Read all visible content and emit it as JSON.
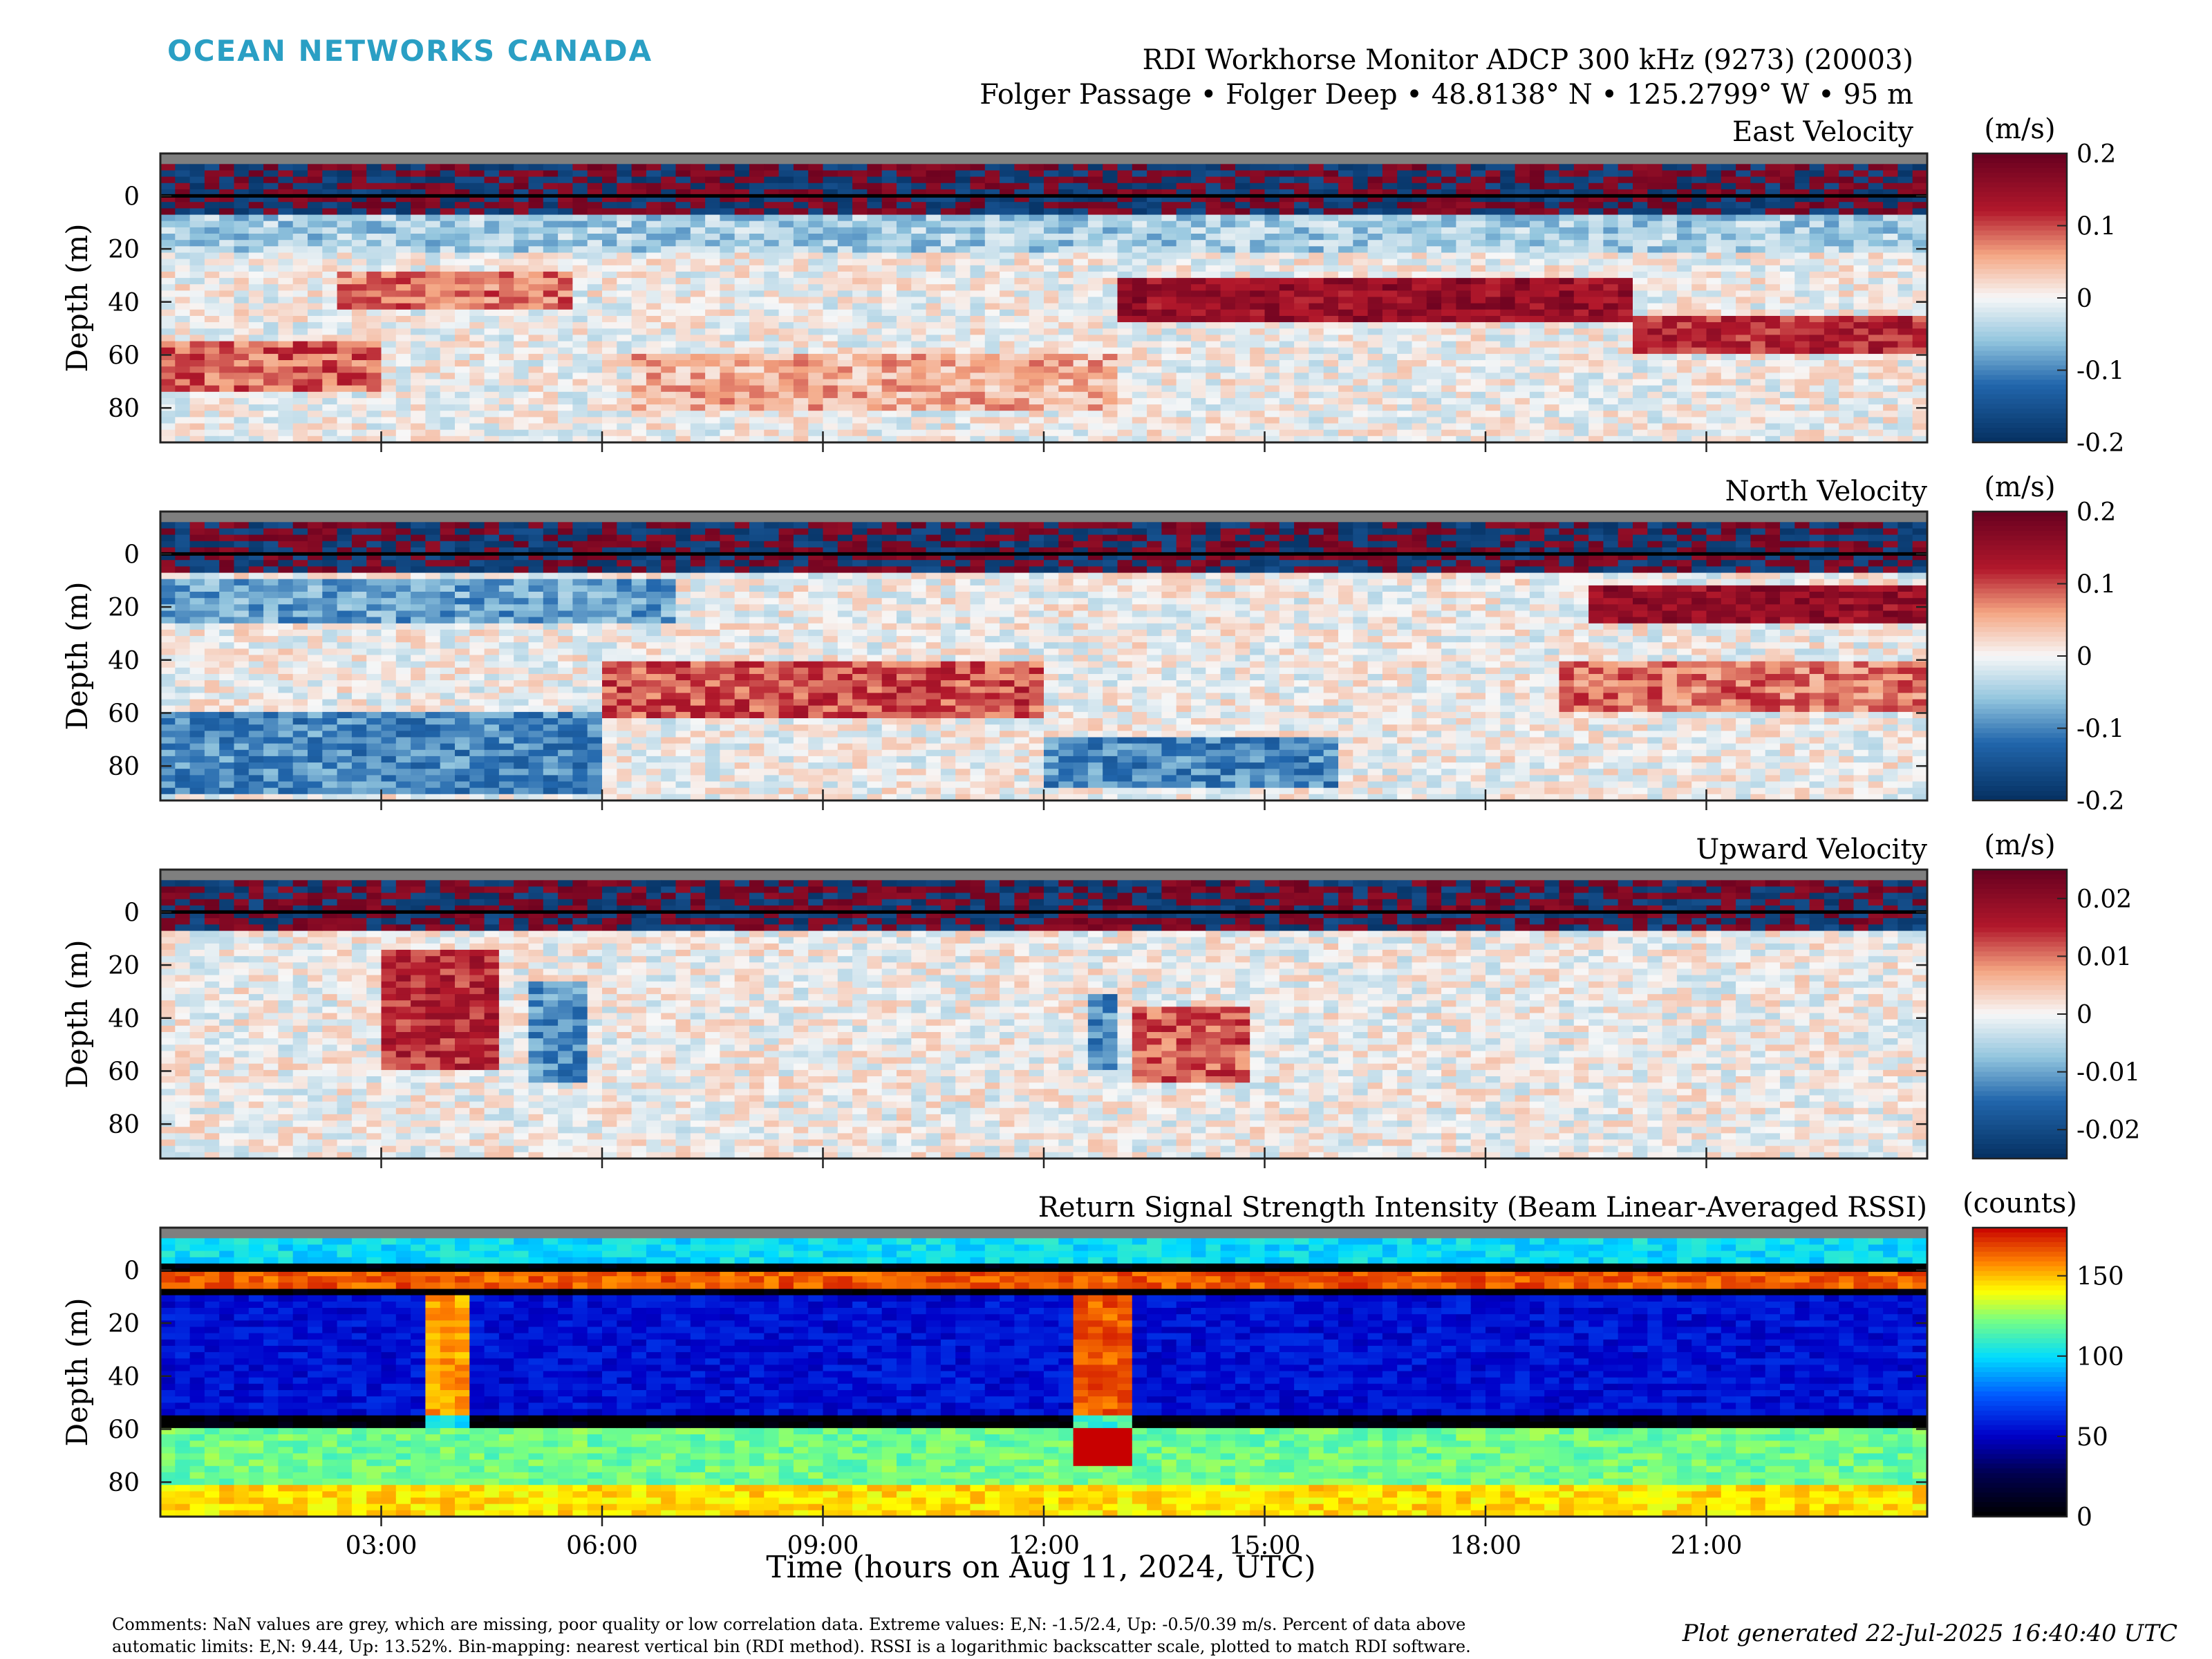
{
  "brand": {
    "logo_text": "OCEAN NETWORKS CANADA",
    "color": "#2a9fc4"
  },
  "header": {
    "title": "RDI Workhorse Monitor ADCP 300 kHz (9273) (20003)",
    "subtitle": "Folger Passage • Folger Deep • 48.8138° N • 125.2799° W • 95 m"
  },
  "xaxis": {
    "label": "Time (hours on Aug 11, 2024, UTC)",
    "range_hours": [
      0,
      24
    ],
    "ticks_hours": [
      3,
      6,
      9,
      12,
      15,
      18,
      21
    ],
    "tick_labels": [
      "03:00",
      "06:00",
      "09:00",
      "12:00",
      "15:00",
      "18:00",
      "21:00"
    ]
  },
  "chart_data": [
    {
      "type": "heatmap",
      "title": "East Velocity",
      "ylabel": "Depth (m)",
      "ylim": [
        93,
        -16
      ],
      "yticks": [
        0,
        20,
        40,
        60,
        80
      ],
      "colorbar": {
        "label": "(m/s)",
        "range": [
          -0.2,
          0.2
        ],
        "ticks": [
          0.2,
          0.1,
          0,
          -0.1,
          -0.2
        ],
        "tick_labels": [
          "0.2",
          "0.1",
          "0",
          "-0.1",
          "-0.2"
        ],
        "colormap": "diverging-red-blue"
      },
      "features": [
        {
          "t": [
            2.5,
            5.5
          ],
          "depth": [
            28,
            42
          ],
          "value": 0.08
        },
        {
          "t": [
            0,
            3
          ],
          "depth": [
            55,
            75
          ],
          "value": 0.09
        },
        {
          "t": [
            6.5,
            13
          ],
          "depth": [
            60,
            80
          ],
          "value": 0.05
        },
        {
          "t": [
            13,
            20
          ],
          "depth": [
            30,
            48
          ],
          "value": 0.15
        },
        {
          "t": [
            20,
            24
          ],
          "depth": [
            45,
            60
          ],
          "value": 0.12
        },
        {
          "t": [
            0,
            24
          ],
          "depth": [
            8,
            22
          ],
          "value": -0.05
        }
      ]
    },
    {
      "type": "heatmap",
      "title": "North Velocity",
      "ylabel": "Depth (m)",
      "ylim": [
        93,
        -16
      ],
      "yticks": [
        0,
        20,
        40,
        60,
        80
      ],
      "colorbar": {
        "label": "(m/s)",
        "range": [
          -0.2,
          0.2
        ],
        "ticks": [
          0.2,
          0.1,
          0,
          -0.1,
          -0.2
        ],
        "tick_labels": [
          "0.2",
          "0.1",
          "0",
          "-0.1",
          "-0.2"
        ],
        "colormap": "diverging-red-blue"
      },
      "features": [
        {
          "t": [
            0,
            7
          ],
          "depth": [
            10,
            25
          ],
          "value": -0.08
        },
        {
          "t": [
            0,
            6
          ],
          "depth": [
            60,
            90
          ],
          "value": -0.1
        },
        {
          "t": [
            6,
            12
          ],
          "depth": [
            40,
            62
          ],
          "value": 0.1
        },
        {
          "t": [
            12,
            16
          ],
          "depth": [
            70,
            88
          ],
          "value": -0.1
        },
        {
          "t": [
            19.5,
            24
          ],
          "depth": [
            12,
            25
          ],
          "value": 0.15
        },
        {
          "t": [
            19,
            24
          ],
          "depth": [
            40,
            60
          ],
          "value": 0.08
        }
      ]
    },
    {
      "type": "heatmap",
      "title": "Upward Velocity",
      "ylabel": "Depth (m)",
      "ylim": [
        93,
        -16
      ],
      "yticks": [
        0,
        20,
        40,
        60,
        80
      ],
      "colorbar": {
        "label": "(m/s)",
        "range": [
          -0.025,
          0.025
        ],
        "ticks": [
          0.02,
          0.01,
          0,
          -0.01,
          -0.02
        ],
        "tick_labels": [
          "0.02",
          "0.01",
          "0",
          "-0.01",
          "-0.02"
        ],
        "colormap": "diverging-red-blue"
      },
      "features": [
        {
          "t": [
            3,
            4.5
          ],
          "depth": [
            15,
            60
          ],
          "value": 0.015
        },
        {
          "t": [
            5,
            5.7
          ],
          "depth": [
            25,
            65
          ],
          "value": -0.012
        },
        {
          "t": [
            13.2,
            14.8
          ],
          "depth": [
            35,
            65
          ],
          "value": 0.012
        },
        {
          "t": [
            12.6,
            12.9
          ],
          "depth": [
            30,
            60
          ],
          "value": -0.012
        }
      ]
    },
    {
      "type": "heatmap",
      "title": "Return Signal Strength Intensity (Beam Linear-Averaged RSSI)",
      "ylabel": "Depth (m)",
      "ylim": [
        93,
        -16
      ],
      "yticks": [
        0,
        20,
        40,
        60,
        80
      ],
      "colorbar": {
        "label": "(counts)",
        "range": [
          0,
          180
        ],
        "ticks": [
          150,
          100,
          50,
          0
        ],
        "tick_labels": [
          "150",
          "100",
          "50",
          "0"
        ],
        "colormap": "jet-like"
      },
      "features": [
        {
          "depth_band": [
            -16,
            -3
          ],
          "value": 100
        },
        {
          "depth_band": [
            0,
            6
          ],
          "value": 165
        },
        {
          "depth_band": [
            10,
            55
          ],
          "value": 55
        },
        {
          "depth_band": [
            60,
            80
          ],
          "value": 120
        },
        {
          "depth_band": [
            82,
            93
          ],
          "value": 145
        },
        {
          "t": [
            3.7,
            4.3
          ],
          "depth": [
            10,
            60
          ],
          "value": 100
        },
        {
          "t": [
            12.5,
            13.2
          ],
          "depth": [
            10,
            75
          ],
          "value": 110
        }
      ]
    }
  ],
  "footer": {
    "comments_line1": "Comments: NaN values are grey, which are missing, poor quality or low correlation data. Extreme values: E,N: -1.5/2.4, Up: -0.5/0.39 m/s. Percent of data above",
    "comments_line2": "automatic limits: E,N: 9.44, Up: 13.52%. Bin-mapping: nearest vertical bin (RDI method). RSSI is a logarithmic backscatter scale, plotted to match RDI software.",
    "generated": "Plot generated 22-Jul-2025 16:40:40 UTC"
  }
}
